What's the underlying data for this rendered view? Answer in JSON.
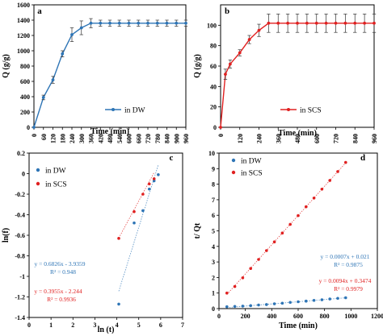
{
  "chart_data": [
    {
      "id": "a",
      "type": "line",
      "panel_label": "a",
      "xlabel": "Time (min)",
      "ylabel": "Q (g/g)",
      "xlim": [
        0,
        960
      ],
      "ylim": [
        0,
        1600
      ],
      "x_ticks": [
        "0",
        "60",
        "120",
        "180",
        "240",
        "300",
        "360",
        "420",
        "480",
        "540",
        "600",
        "660",
        "720",
        "780",
        "840",
        "900",
        "960"
      ],
      "y_ticks": [
        "0",
        "200",
        "400",
        "600",
        "800",
        "1000",
        "1200",
        "1400",
        "1600"
      ],
      "legend_position": "bottom-right",
      "series": [
        {
          "name": "in DW",
          "color": "#2e75b6",
          "x": [
            0,
            60,
            120,
            180,
            240,
            300,
            360,
            420,
            480,
            540,
            600,
            660,
            720,
            780,
            840,
            900,
            960
          ],
          "y": [
            0,
            390,
            620,
            960,
            1210,
            1300,
            1360,
            1360,
            1360,
            1360,
            1360,
            1360,
            1360,
            1360,
            1360,
            1360,
            1360
          ],
          "err": [
            0,
            30,
            45,
            40,
            90,
            90,
            60,
            40,
            40,
            40,
            40,
            40,
            40,
            40,
            40,
            40,
            40
          ]
        }
      ]
    },
    {
      "id": "b",
      "type": "line",
      "panel_label": "b",
      "xlabel": "Time (min)",
      "ylabel": "Q (g/g)",
      "xlim": [
        0,
        960
      ],
      "ylim": [
        0,
        120
      ],
      "x_ticks": [
        "0",
        "120",
        "240",
        "360",
        "480",
        "600",
        "720",
        "840",
        "960"
      ],
      "y_ticks": [
        "0",
        "20",
        "40",
        "60",
        "80",
        "100"
      ],
      "legend_position": "bottom-right",
      "series": [
        {
          "name": "in SCS",
          "color": "#e02020",
          "x": [
            0,
            30,
            60,
            120,
            180,
            240,
            300,
            360,
            420,
            480,
            540,
            600,
            660,
            720,
            780,
            840,
            900,
            960
          ],
          "y": [
            0,
            52,
            62,
            73,
            86,
            95,
            102,
            102,
            102,
            102,
            102,
            102,
            102,
            102,
            102,
            102,
            102,
            102
          ],
          "err": [
            0,
            5,
            4,
            3,
            4,
            6,
            9,
            9,
            9,
            9,
            9,
            9,
            9,
            9,
            9,
            9,
            9,
            9
          ]
        }
      ]
    },
    {
      "id": "c",
      "type": "scatter",
      "panel_label": "c",
      "xlabel": "ln (t)",
      "ylabel": "ln(f)",
      "xlim": [
        0,
        7
      ],
      "ylim": [
        -1.4,
        0.2
      ],
      "x_ticks": [
        "0",
        "1",
        "2",
        "3",
        "4",
        "5",
        "6",
        "7"
      ],
      "y_ticks": [
        "-1.4",
        "-1.2",
        "-1",
        "-0.8",
        "-0.6",
        "-0.4",
        "-0.2",
        "0",
        "0.2"
      ],
      "legend_position": "top-left",
      "series": [
        {
          "name": "in DW",
          "color": "#2e75b6",
          "x": [
            4.09,
            4.79,
            5.19,
            5.48,
            5.7,
            5.89
          ],
          "y": [
            -1.27,
            -0.48,
            -0.36,
            -0.15,
            -0.07,
            -0.01
          ],
          "trend": {
            "slope": 0.6826,
            "intercept": -3.9359,
            "from": 4.09,
            "to": 5.89
          },
          "equation": "y = 0.6826x - 3.9359",
          "r2": "R² = 0.948"
        },
        {
          "name": "in SCS",
          "color": "#e02020",
          "x": [
            4.09,
            4.79,
            5.19,
            5.48,
            5.7
          ],
          "y": [
            -0.63,
            -0.37,
            -0.2,
            -0.1,
            -0.05
          ],
          "trend": {
            "slope": 0.3955,
            "intercept": -2.244,
            "from": 4.09,
            "to": 5.7
          },
          "equation": "y = 0.3955x - 2.244",
          "r2": "R² = 0.9936"
        }
      ]
    },
    {
      "id": "d",
      "type": "scatter",
      "panel_label": "d",
      "xlabel": "Time (min)",
      "ylabel": "t/ Qt",
      "xlim": [
        0,
        1200
      ],
      "ylim": [
        0,
        10
      ],
      "x_ticks": [
        "0",
        "200",
        "400",
        "600",
        "800",
        "1000",
        "1200"
      ],
      "y_ticks": [
        "0",
        "1",
        "2",
        "3",
        "4",
        "5",
        "6",
        "7",
        "8",
        "9",
        "10"
      ],
      "legend_position": "top-left",
      "series": [
        {
          "name": "in DW",
          "color": "#2e75b6",
          "x": [
            60,
            120,
            180,
            240,
            300,
            360,
            420,
            480,
            540,
            600,
            660,
            720,
            780,
            840,
            900,
            960
          ],
          "y": [
            0.12,
            0.14,
            0.16,
            0.19,
            0.23,
            0.26,
            0.31,
            0.35,
            0.4,
            0.44,
            0.48,
            0.53,
            0.57,
            0.62,
            0.66,
            0.7
          ],
          "trend": {
            "slope": 0.0007,
            "intercept": 0.021,
            "from": 60,
            "to": 960
          },
          "equation": "y = 0.0007x + 0.021",
          "r2": "R² = 0.9875"
        },
        {
          "name": "in SCS",
          "color": "#e02020",
          "x": [
            60,
            120,
            180,
            240,
            300,
            360,
            420,
            480,
            540,
            600,
            660,
            720,
            780,
            840,
            900,
            960
          ],
          "y": [
            1.0,
            1.42,
            1.98,
            2.58,
            3.16,
            3.73,
            4.29,
            4.86,
            5.42,
            5.98,
            6.55,
            7.11,
            7.68,
            8.24,
            8.81,
            9.4
          ],
          "trend": {
            "slope": 0.0094,
            "intercept": 0.3474,
            "from": 60,
            "to": 960
          },
          "equation": "y = 0.0094x + 0.3474",
          "r2": "R² = 0.9979"
        }
      ]
    }
  ]
}
